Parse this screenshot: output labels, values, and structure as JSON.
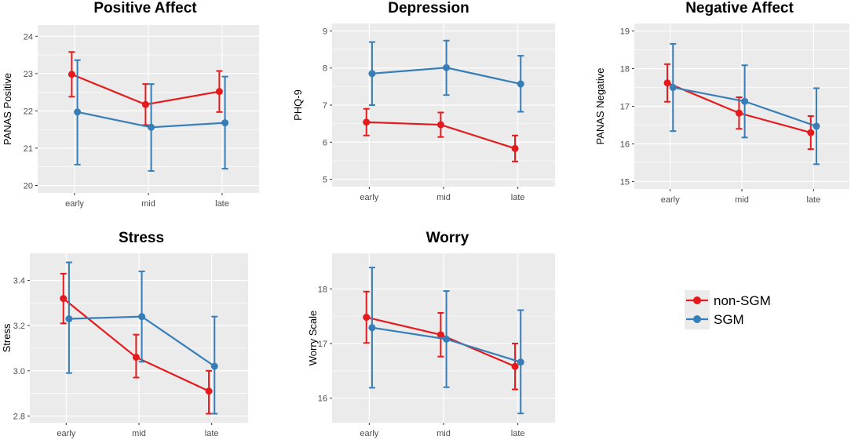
{
  "colors": {
    "non_sgm": "#e41a1c",
    "sgm": "#377eb8",
    "panel_bg": "#ebebeb",
    "grid": "#ffffff"
  },
  "legend": {
    "position": "right",
    "items": [
      "non-SGM",
      "SGM"
    ]
  },
  "chart_data": [
    {
      "type": "line",
      "title": "Positive Affect",
      "ylabel": "PANAS Positive",
      "categories": [
        "early",
        "mid",
        "late"
      ],
      "ylim": [
        19.8,
        24.3
      ],
      "yticks": [
        20,
        21,
        22,
        23,
        24
      ],
      "series": [
        {
          "name": "non-SGM",
          "values": [
            22.98,
            22.17,
            22.52
          ],
          "lower": [
            22.38,
            21.62,
            21.97
          ],
          "upper": [
            23.58,
            22.72,
            23.07
          ]
        },
        {
          "name": "SGM",
          "values": [
            21.97,
            21.56,
            21.68
          ],
          "lower": [
            20.56,
            20.39,
            20.45
          ],
          "upper": [
            23.36,
            22.72,
            22.92
          ]
        }
      ]
    },
    {
      "type": "line",
      "title": "Depression",
      "ylabel": "PHQ-9",
      "categories": [
        "early",
        "mid",
        "late"
      ],
      "ylim": [
        4.8,
        9.2
      ],
      "yticks": [
        5,
        6,
        7,
        8,
        9
      ],
      "series": [
        {
          "name": "non-SGM",
          "values": [
            6.54,
            6.47,
            5.83
          ],
          "lower": [
            6.18,
            6.14,
            5.48
          ],
          "upper": [
            6.9,
            6.8,
            6.18
          ]
        },
        {
          "name": "SGM",
          "values": [
            7.85,
            8.01,
            7.57
          ],
          "lower": [
            7.0,
            7.27,
            6.82
          ],
          "upper": [
            8.7,
            8.74,
            8.33
          ]
        }
      ]
    },
    {
      "type": "line",
      "title": "Negative Affect",
      "ylabel": "PANAS Negative",
      "categories": [
        "early",
        "mid",
        "late"
      ],
      "ylim": [
        14.8,
        19.2
      ],
      "yticks": [
        15,
        16,
        17,
        18,
        19
      ],
      "series": [
        {
          "name": "non-SGM",
          "values": [
            17.62,
            16.82,
            16.3
          ],
          "lower": [
            17.12,
            16.4,
            15.86
          ],
          "upper": [
            18.12,
            17.24,
            16.74
          ]
        },
        {
          "name": "SGM",
          "values": [
            17.5,
            17.13,
            16.47
          ],
          "lower": [
            16.34,
            16.17,
            15.46
          ],
          "upper": [
            18.66,
            18.09,
            17.48
          ]
        }
      ]
    },
    {
      "type": "line",
      "title": "Stress",
      "ylabel": "Stress",
      "categories": [
        "early",
        "mid",
        "late"
      ],
      "ylim": [
        2.77,
        3.52
      ],
      "yticks": [
        2.8,
        3.0,
        3.2,
        3.4
      ],
      "ytick_labels": [
        "2.8",
        "3.0",
        "3.2",
        "3.4"
      ],
      "series": [
        {
          "name": "non-SGM",
          "values": [
            3.32,
            3.06,
            2.91
          ],
          "lower": [
            3.21,
            2.97,
            2.81
          ],
          "upper": [
            3.43,
            3.16,
            3.0
          ]
        },
        {
          "name": "SGM",
          "values": [
            3.23,
            3.24,
            3.02
          ],
          "lower": [
            2.99,
            3.04,
            2.81
          ],
          "upper": [
            3.48,
            3.44,
            3.24
          ]
        }
      ]
    },
    {
      "type": "line",
      "title": "Worry",
      "ylabel": "Worry Scale",
      "categories": [
        "early",
        "mid",
        "late"
      ],
      "ylim": [
        15.55,
        18.65
      ],
      "yticks": [
        16,
        17,
        18
      ],
      "series": [
        {
          "name": "non-SGM",
          "values": [
            17.48,
            17.16,
            16.58
          ],
          "lower": [
            17.01,
            16.76,
            16.16
          ],
          "upper": [
            17.95,
            17.56,
            17.0
          ]
        },
        {
          "name": "SGM",
          "values": [
            17.29,
            17.08,
            16.66
          ],
          "lower": [
            16.19,
            16.2,
            15.72
          ],
          "upper": [
            18.39,
            17.96,
            17.61
          ]
        }
      ]
    }
  ]
}
